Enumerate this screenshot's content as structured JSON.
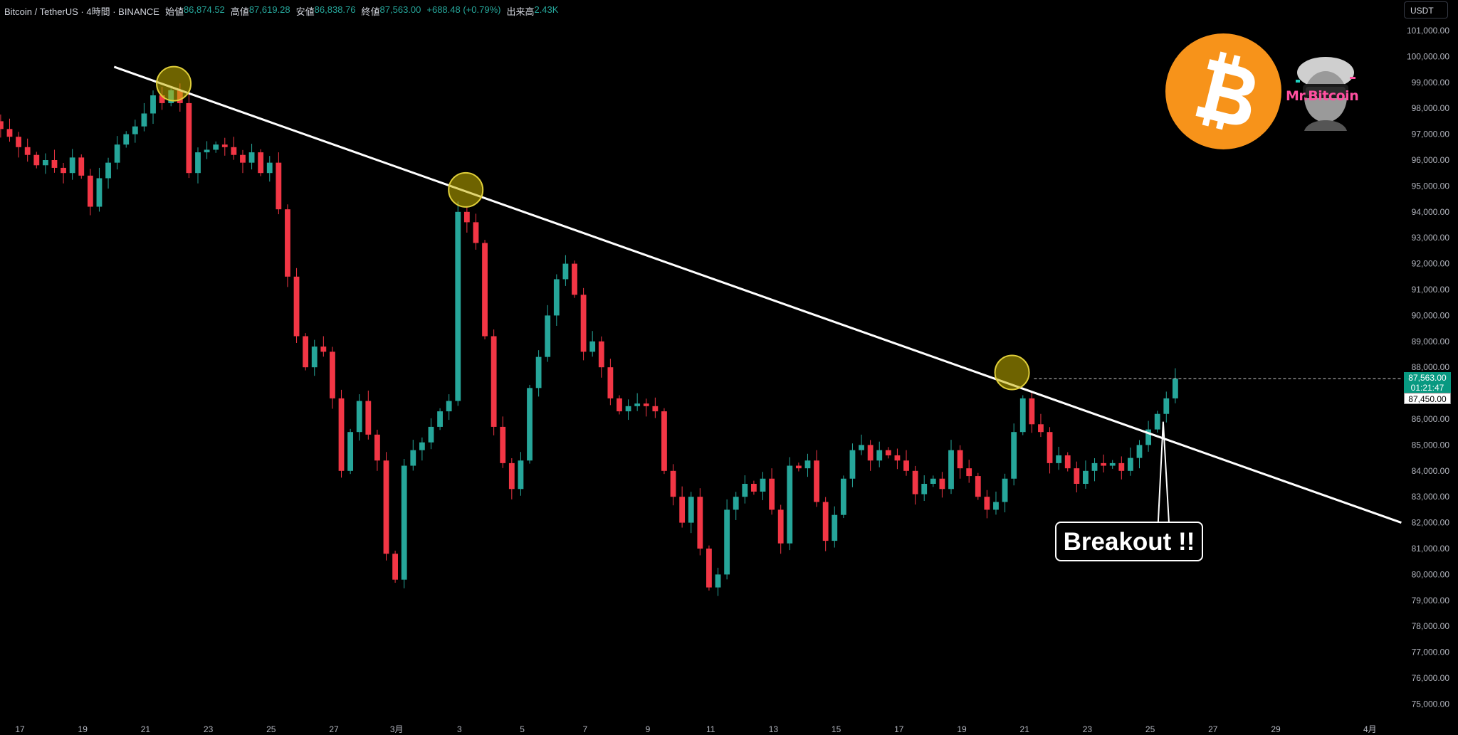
{
  "header": {
    "symbol": "Bitcoin / TetherUS · 4時間 · BINANCE",
    "open_label": "始値",
    "open": "86,874.52",
    "high_label": "高値",
    "high": "87,619.28",
    "low_label": "安値",
    "low": "86,838.76",
    "close_label": "終値",
    "close": "87,563.00",
    "change": "+688.48 (+0.79%)",
    "volume_label": "出来高",
    "volume": "2.43K"
  },
  "currency": "USDT",
  "avatar_label": "Mr.Bitcoin",
  "annotation": "Breakout !!",
  "price_tag": {
    "price": "87,563.00",
    "countdown": "01:21:47",
    "level": "87,450.00"
  },
  "colors": {
    "up": "#26a69a",
    "down": "#f23645",
    "background": "#000000",
    "trendline": "#ffffff",
    "marker": "#c8b400",
    "btc": "#f7931a"
  },
  "chart_data": {
    "type": "candlestick",
    "timeframe": "4h",
    "ylim": [
      74500,
      102000
    ],
    "yticks": [
      75000,
      76000,
      77000,
      78000,
      79000,
      80000,
      81000,
      82000,
      83000,
      84000,
      85000,
      86000,
      87000,
      88000,
      89000,
      90000,
      91000,
      92000,
      93000,
      94000,
      95000,
      96000,
      97000,
      98000,
      99000,
      100000,
      101000
    ],
    "xticks": [
      "17",
      "19",
      "21",
      "23",
      "25",
      "27",
      "3月",
      "3",
      "5",
      "7",
      "9",
      "11",
      "13",
      "15",
      "17",
      "19",
      "21",
      "23",
      "25",
      "27",
      "29",
      "4月"
    ],
    "xtick_days": [
      17,
      19,
      21,
      23,
      25,
      27,
      29,
      31,
      33,
      35,
      37,
      39,
      41,
      43,
      45,
      47,
      49,
      51,
      53,
      55,
      57,
      60
    ],
    "x_axis_note": "day index from Feb 0; 3月 = Mar 1 = 29",
    "closes": [
      97500,
      97200,
      96900,
      96500,
      96200,
      95800,
      96000,
      95700,
      95500,
      96100,
      95400,
      94200,
      95300,
      95900,
      96600,
      97000,
      97300,
      97800,
      98500,
      98200,
      98700,
      98200,
      95500,
      96300,
      96400,
      96600,
      96500,
      96200,
      95900,
      96300,
      95500,
      95900,
      94100,
      91500,
      89200,
      88000,
      88800,
      88600,
      86800,
      84000,
      85500,
      86700,
      85400,
      84400,
      80800,
      79800,
      84200,
      84800,
      85100,
      85700,
      86300,
      86700,
      94000,
      93600,
      92800,
      89200,
      85700,
      84300,
      83300,
      84400,
      87200,
      88400,
      90000,
      91400,
      92000,
      90800,
      88600,
      89000,
      88000,
      86800,
      86300,
      86500,
      86600,
      86500,
      86300,
      84000,
      83000,
      82000,
      83000,
      81000,
      79500,
      80000,
      82500,
      83000,
      83500,
      83200,
      83700,
      82500,
      81200,
      84200,
      84100,
      84400,
      82800,
      81300,
      82300,
      83700,
      84800,
      85000,
      84400,
      84800,
      84600,
      84400,
      84000,
      83100,
      83500,
      83700,
      83300,
      84800,
      84100,
      83800,
      83000,
      82500,
      82800,
      83700,
      85500,
      86800,
      85800,
      85500,
      84300,
      84600,
      84100,
      83500,
      84000,
      84300,
      84200,
      84300,
      84000,
      84500,
      85000,
      85600,
      86200,
      86800,
      87563
    ],
    "trendline": [
      {
        "day": 20,
        "price": 99600
      },
      {
        "day": 61,
        "price": 82000
      }
    ],
    "touch_points": [
      {
        "day": 21.9,
        "price": 98950
      },
      {
        "day": 31.2,
        "price": 94850
      },
      {
        "day": 48.6,
        "price": 87800
      }
    ],
    "last_price": 87563,
    "price_line": 87563
  }
}
